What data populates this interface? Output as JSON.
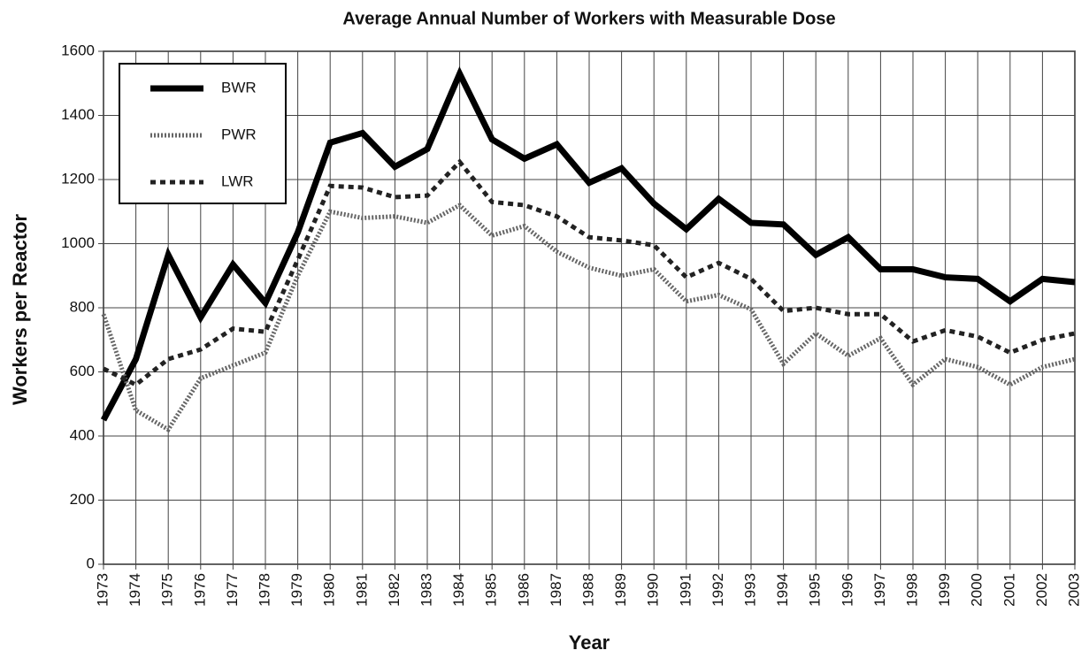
{
  "chart_data": {
    "type": "line",
    "title": "Average Annual Number of Workers with Measurable Dose",
    "x_label": "Year",
    "y_label": "Workers per Reactor",
    "categories": [
      "1973",
      "1974",
      "1975",
      "1976",
      "1977",
      "1978",
      "1979",
      "1980",
      "1981",
      "1982",
      "1983",
      "1984",
      "1985",
      "1986",
      "1987",
      "1988",
      "1989",
      "1990",
      "1991",
      "1992",
      "1993",
      "1994",
      "1995",
      "1996",
      "1997",
      "1998",
      "1999",
      "2000",
      "2001",
      "2002",
      "2003"
    ],
    "series": [
      {
        "name": "BWR",
        "color": "#000000",
        "values": [
          450,
          640,
          965,
          770,
          935,
          815,
          1035,
          1315,
          1345,
          1240,
          1295,
          1530,
          1325,
          1265,
          1310,
          1190,
          1235,
          1125,
          1045,
          1140,
          1065,
          1060,
          965,
          1020,
          920,
          920,
          895,
          890,
          820,
          890,
          880
        ]
      },
      {
        "name": "PWR",
        "color": "#666666",
        "values": [
          780,
          480,
          420,
          580,
          620,
          660,
          900,
          1100,
          1080,
          1085,
          1065,
          1120,
          1025,
          1055,
          975,
          925,
          900,
          920,
          820,
          840,
          795,
          625,
          720,
          650,
          705,
          560,
          640,
          615,
          560,
          615,
          640
        ]
      },
      {
        "name": "LWR",
        "color": "#222222",
        "values": [
          610,
          560,
          640,
          670,
          735,
          725,
          950,
          1180,
          1175,
          1145,
          1150,
          1255,
          1130,
          1120,
          1085,
          1020,
          1010,
          995,
          895,
          940,
          890,
          790,
          800,
          780,
          780,
          695,
          730,
          710,
          660,
          700,
          720
        ]
      }
    ],
    "ylim": [
      0,
      1600
    ],
    "yticks": [
      0,
      200,
      400,
      600,
      800,
      1000,
      1200,
      1400,
      1600
    ],
    "grid": true,
    "legend": "upper left"
  }
}
